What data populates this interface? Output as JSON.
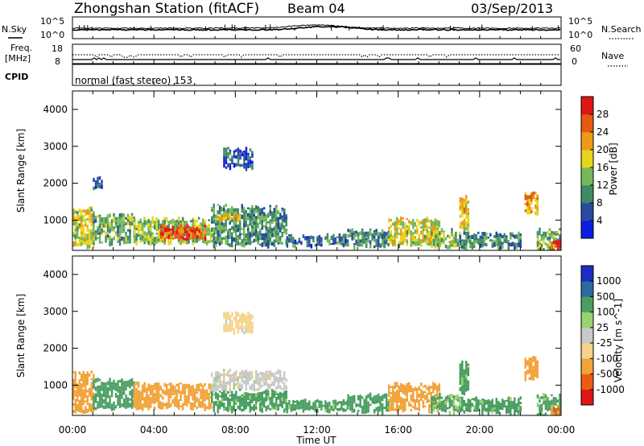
{
  "header": {
    "station": "Zhongshan Station (fitACF)",
    "beam": "Beam 04",
    "date": "03/Sep/2013"
  },
  "status_panels": {
    "nsky_label": "N.Sky",
    "nsearch_label": "N.Search",
    "freq_label_1": "Freq.",
    "freq_label_2": "[MHz]",
    "nave_label": "Nave",
    "cpid_label": "CPID",
    "cpid_text": "normal (fast stereo) 153",
    "nsky_ticks": [
      "10^5",
      "10^0"
    ],
    "nsearch_ticks": [
      "10^5",
      "10^0"
    ],
    "freq_ticks": [
      "18",
      "8"
    ],
    "nave_ticks": [
      "60",
      "0"
    ]
  },
  "chart_data": [
    {
      "type": "heatmap",
      "title": "",
      "xlabel": "",
      "ylabel": "Slant Range [km]",
      "xlim": [
        "00:00",
        "24:00"
      ],
      "ylim": [
        180,
        4500
      ],
      "yticks": [
        1000,
        2000,
        3000,
        4000
      ],
      "colorbar": {
        "label": "Power [dB]",
        "ticks": [
          4,
          8,
          12,
          16,
          20,
          24,
          28
        ],
        "range": [
          0,
          30
        ]
      },
      "echo_regions": [
        {
          "t0": 0.0,
          "t1": 1.0,
          "r0": 300,
          "r1": 1400,
          "value": 16
        },
        {
          "t0": 1.0,
          "t1": 3.0,
          "r0": 400,
          "r1": 1200,
          "value": 12
        },
        {
          "t0": 1.0,
          "t1": 1.4,
          "r0": 1900,
          "r1": 2200,
          "value": 6
        },
        {
          "t0": 3.0,
          "t1": 6.8,
          "r0": 400,
          "r1": 1100,
          "value": 14
        },
        {
          "t0": 4.3,
          "t1": 6.5,
          "r0": 500,
          "r1": 900,
          "value": 25
        },
        {
          "t0": 6.8,
          "t1": 10.5,
          "r0": 350,
          "r1": 1450,
          "value": 10
        },
        {
          "t0": 7.4,
          "t1": 8.8,
          "r0": 2450,
          "r1": 3000,
          "value": 6
        },
        {
          "t0": 7.0,
          "t1": 8.2,
          "r0": 1050,
          "r1": 1250,
          "value": 18
        },
        {
          "t0": 10.5,
          "t1": 13.5,
          "r0": 350,
          "r1": 650,
          "value": 8
        },
        {
          "t0": 13.5,
          "t1": 15.5,
          "r0": 300,
          "r1": 800,
          "value": 10
        },
        {
          "t0": 15.5,
          "t1": 18.0,
          "r0": 350,
          "r1": 1100,
          "value": 16
        },
        {
          "t0": 17.6,
          "t1": 19.0,
          "r0": 300,
          "r1": 800,
          "value": 14
        },
        {
          "t0": 19.0,
          "t1": 19.4,
          "r0": 800,
          "r1": 1700,
          "value": 18
        },
        {
          "t0": 19.0,
          "t1": 22.0,
          "r0": 300,
          "r1": 700,
          "value": 9
        },
        {
          "t0": 22.2,
          "t1": 22.8,
          "r0": 1200,
          "r1": 1800,
          "value": 20
        },
        {
          "t0": 22.8,
          "t1": 24.0,
          "r0": 200,
          "r1": 800,
          "value": 12
        },
        {
          "t0": 23.5,
          "t1": 24.0,
          "r0": 200,
          "r1": 500,
          "value": 26
        }
      ]
    },
    {
      "type": "heatmap",
      "title": "",
      "xlabel": "Time UT",
      "ylabel": "Slant Range [km]",
      "xlim": [
        "00:00",
        "24:00"
      ],
      "xticks": [
        "00:00",
        "04:00",
        "08:00",
        "12:00",
        "16:00",
        "20:00",
        "00:00"
      ],
      "ylim": [
        180,
        4500
      ],
      "yticks": [
        1000,
        2000,
        3000,
        4000
      ],
      "colorbar": {
        "label": "Velocity [m s^-1]",
        "ticks": [
          1000,
          500,
          100,
          25,
          -25,
          -100,
          -500,
          -1000
        ]
      },
      "echo_regions": [
        {
          "t0": 0.0,
          "t1": 1.0,
          "r0": 300,
          "r1": 1400,
          "value": -300
        },
        {
          "t0": 1.0,
          "t1": 3.0,
          "r0": 400,
          "r1": 1200,
          "value": 200
        },
        {
          "t0": 3.0,
          "t1": 6.8,
          "r0": 400,
          "r1": 1100,
          "value": -300
        },
        {
          "t0": 6.8,
          "t1": 10.5,
          "r0": 900,
          "r1": 1450,
          "value": 0
        },
        {
          "t0": 6.8,
          "t1": 10.5,
          "r0": 350,
          "r1": 900,
          "value": 150
        },
        {
          "t0": 7.4,
          "t1": 8.8,
          "r0": 2450,
          "r1": 3000,
          "value": -50
        },
        {
          "t0": 10.5,
          "t1": 13.5,
          "r0": 350,
          "r1": 650,
          "value": 150
        },
        {
          "t0": 13.5,
          "t1": 15.5,
          "r0": 300,
          "r1": 800,
          "value": 200
        },
        {
          "t0": 15.5,
          "t1": 18.0,
          "r0": 350,
          "r1": 1100,
          "value": -300
        },
        {
          "t0": 17.6,
          "t1": 19.0,
          "r0": 300,
          "r1": 800,
          "value": 120
        },
        {
          "t0": 19.0,
          "t1": 19.4,
          "r0": 800,
          "r1": 1700,
          "value": 150
        },
        {
          "t0": 19.0,
          "t1": 22.0,
          "r0": 300,
          "r1": 700,
          "value": 150
        },
        {
          "t0": 22.2,
          "t1": 22.8,
          "r0": 1200,
          "r1": 1800,
          "value": -300
        },
        {
          "t0": 22.8,
          "t1": 24.0,
          "r0": 200,
          "r1": 800,
          "value": 150
        },
        {
          "t0": 23.5,
          "t1": 24.0,
          "r0": 200,
          "r1": 500,
          "value": -500
        }
      ]
    }
  ],
  "colors": {
    "power_scale": [
      "#0b1ee0",
      "#2a4aa0",
      "#3f8a66",
      "#74b85a",
      "#e6d51a",
      "#ee9a18",
      "#e45a10",
      "#e01616"
    ],
    "velocity_scale": [
      "#e01616",
      "#ee5a14",
      "#f2a33a",
      "#f5d389",
      "#c9c9c9",
      "#9ad26e",
      "#4a9e62",
      "#2a6aa0",
      "#1a2ec0"
    ]
  }
}
